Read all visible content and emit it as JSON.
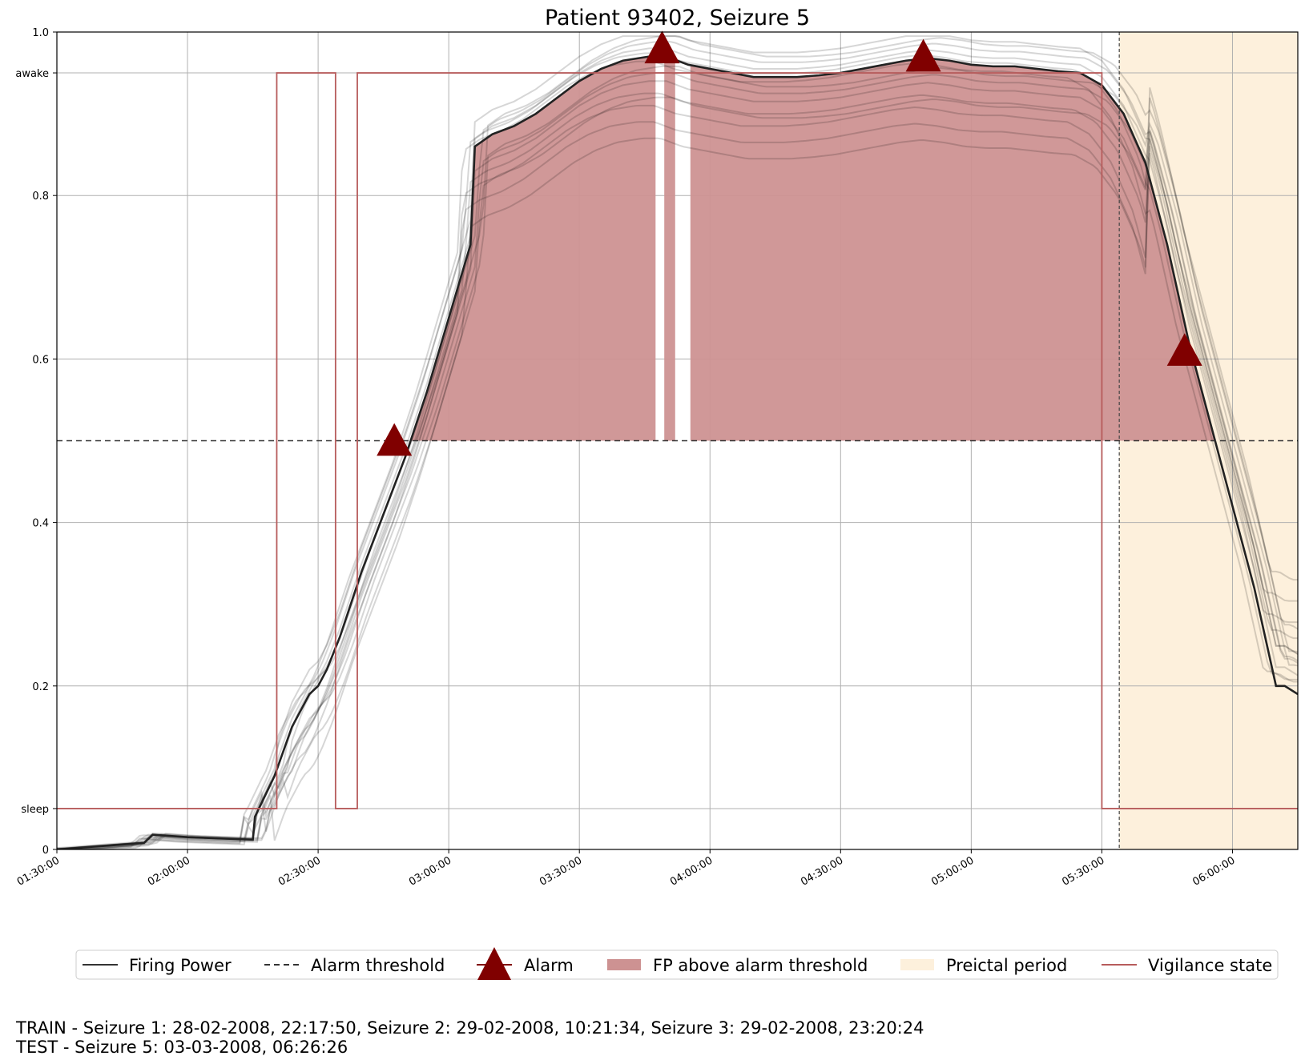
{
  "chart_data": {
    "type": "line",
    "title": "Patient 93402, Seizure 5",
    "xlabel": "",
    "ylabel": "",
    "x_ticks": [
      "01:30:00",
      "02:00:00",
      "02:30:00",
      "03:00:00",
      "03:30:00",
      "04:00:00",
      "04:30:00",
      "05:00:00",
      "05:30:00",
      "06:00:00"
    ],
    "x_range_minutes": [
      90,
      375
    ],
    "ylim": [
      0,
      1.0
    ],
    "y_ticks": [
      {
        "value": 0,
        "label": "0"
      },
      {
        "value": 0.05,
        "label": "sleep"
      },
      {
        "value": 0.2,
        "label": "0.2"
      },
      {
        "value": 0.4,
        "label": "0.4"
      },
      {
        "value": 0.6,
        "label": "0.6"
      },
      {
        "value": 0.8,
        "label": "0.8"
      },
      {
        "value": 0.95,
        "label": "awake"
      },
      {
        "value": 1.0,
        "label": "1.0"
      }
    ],
    "grid": true,
    "alarm_threshold": 0.5,
    "preictal_start_minutes": 334,
    "firing_power": {
      "name": "Firing Power",
      "x_minutes": [
        90,
        110,
        112,
        120,
        135,
        135.5,
        140,
        144,
        148,
        150,
        152,
        155,
        160,
        165,
        170,
        175,
        180,
        185,
        186,
        190,
        195,
        200,
        205,
        210,
        215,
        220,
        226,
        230,
        235,
        240,
        245,
        250,
        255,
        260,
        265,
        270,
        275,
        280,
        285,
        290,
        295,
        300,
        305,
        310,
        315,
        320,
        325,
        330,
        335,
        340,
        345,
        350,
        355,
        360,
        365,
        370,
        372,
        375
      ],
      "y": [
        0,
        0.008,
        0.018,
        0.015,
        0.012,
        0.04,
        0.09,
        0.15,
        0.19,
        0.2,
        0.22,
        0.26,
        0.34,
        0.41,
        0.48,
        0.56,
        0.65,
        0.74,
        0.86,
        0.875,
        0.885,
        0.9,
        0.92,
        0.94,
        0.955,
        0.965,
        0.97,
        0.97,
        0.96,
        0.955,
        0.95,
        0.945,
        0.945,
        0.945,
        0.947,
        0.95,
        0.955,
        0.96,
        0.965,
        0.968,
        0.965,
        0.96,
        0.958,
        0.958,
        0.955,
        0.952,
        0.95,
        0.935,
        0.9,
        0.84,
        0.74,
        0.62,
        0.52,
        0.42,
        0.32,
        0.2,
        0.2,
        0.19
      ]
    },
    "alarms": [
      {
        "x_minutes": 167.5,
        "y": 0.5
      },
      {
        "x_minutes": 229,
        "y": 0.98
      },
      {
        "x_minutes": 289,
        "y": 0.97
      },
      {
        "x_minutes": 349,
        "y": 0.61
      }
    ],
    "vigilance_state": {
      "name": "Vigilance state",
      "segments": [
        {
          "from": 90,
          "to": 140.5,
          "state": "sleep"
        },
        {
          "from": 140.5,
          "to": 154,
          "state": "awake"
        },
        {
          "from": 154,
          "to": 159,
          "state": "sleep"
        },
        {
          "from": 159,
          "to": 330,
          "state": "awake"
        },
        {
          "from": 330,
          "to": 375,
          "state": "sleep"
        }
      ]
    },
    "legend": {
      "placement": "bottom",
      "entries": [
        "Firing Power",
        "Alarm threshold",
        "Alarm",
        "FP above alarm threshold",
        "Preictal period",
        "Vigilance state"
      ]
    },
    "colors": {
      "firing_power": "#222222",
      "alarm": "#800000",
      "fp_above_fill": "#cd9292",
      "preictal_fill": "#fdf0dc",
      "vigilance": "#b75c5c",
      "grid": "#b0b0b0"
    }
  },
  "footer": {
    "train": "TRAIN - Seizure 1: 28-02-2008, 22:17:50, Seizure 2: 29-02-2008, 10:21:34, Seizure 3: 29-02-2008, 23:20:24",
    "test": "TEST - Seizure 5: 03-03-2008, 06:26:26"
  }
}
